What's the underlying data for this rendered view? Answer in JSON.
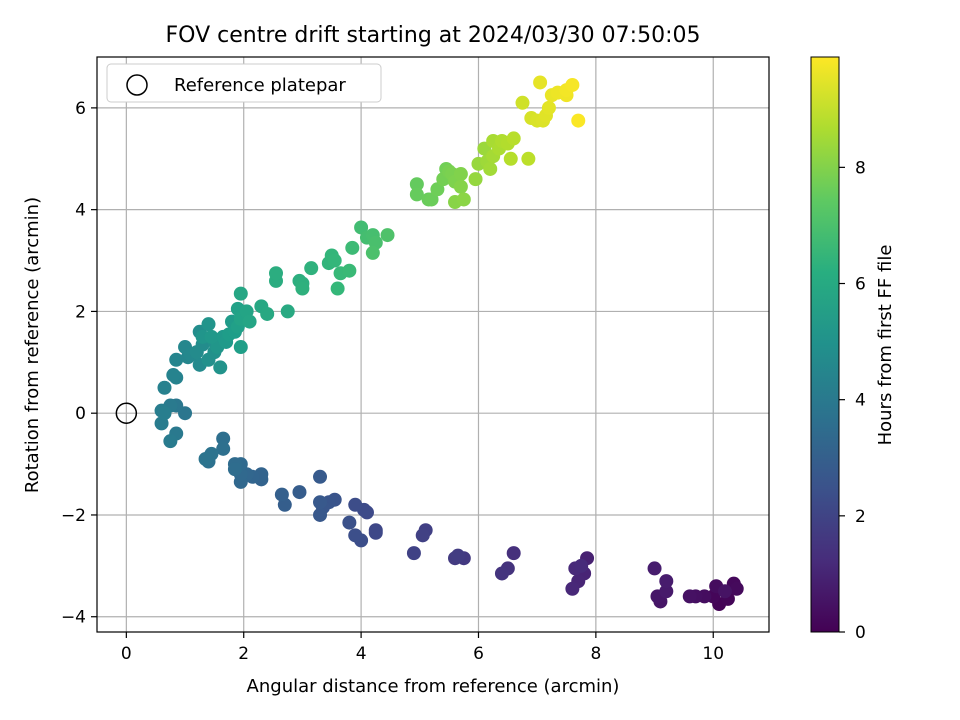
{
  "chart_data": {
    "type": "scatter",
    "title": "FOV centre drift starting at 2024/03/30 07:50:05",
    "xlabel": "Angular distance from reference (arcmin)",
    "ylabel": "Rotation from reference (arcmin)",
    "xlim": [
      -0.5,
      10.95
    ],
    "ylim": [
      -4.3,
      7.0
    ],
    "xticks": [
      "0",
      "2",
      "4",
      "6",
      "8",
      "10"
    ],
    "yticks": [
      "−4",
      "−2",
      "0",
      "2",
      "4",
      "6"
    ],
    "grid": true,
    "legend": {
      "placement": "top-left",
      "entries": [
        "Reference platepar"
      ]
    },
    "reference_point": {
      "x": 0,
      "y": 0
    },
    "colorbar": {
      "label": "Hours from first FF file",
      "range": [
        0,
        9.9
      ],
      "ticks": [
        "0",
        "2",
        "4",
        "6",
        "8"
      ],
      "colormap": "viridis"
    },
    "series": [
      {
        "color_by": "Hours from first FF file",
        "points": [
          [
            10.1,
            -3.75,
            0.05
          ],
          [
            10.25,
            -3.65,
            0.1
          ],
          [
            10.0,
            -3.6,
            0.15
          ],
          [
            10.35,
            -3.35,
            0.2
          ],
          [
            10.4,
            -3.45,
            0.25
          ],
          [
            10.05,
            -3.4,
            0.3
          ],
          [
            9.85,
            -3.6,
            0.35
          ],
          [
            9.7,
            -3.6,
            0.4
          ],
          [
            9.6,
            -3.6,
            0.45
          ],
          [
            10.2,
            -3.5,
            0.5
          ],
          [
            9.1,
            -3.7,
            0.55
          ],
          [
            9.05,
            -3.6,
            0.6
          ],
          [
            9.2,
            -3.5,
            0.7
          ],
          [
            9.2,
            -3.3,
            0.75
          ],
          [
            9.0,
            -3.05,
            0.8
          ],
          [
            7.85,
            -2.85,
            0.9
          ],
          [
            7.8,
            -3.15,
            1.0
          ],
          [
            7.7,
            -3.3,
            1.05
          ],
          [
            7.6,
            -3.45,
            1.1
          ],
          [
            7.65,
            -3.05,
            1.15
          ],
          [
            7.75,
            -3.0,
            1.2
          ],
          [
            6.6,
            -2.75,
            1.35
          ],
          [
            6.5,
            -3.05,
            1.45
          ],
          [
            6.4,
            -3.15,
            1.5
          ],
          [
            5.75,
            -2.85,
            1.65
          ],
          [
            5.6,
            -2.85,
            1.7
          ],
          [
            5.65,
            -2.8,
            1.75
          ],
          [
            5.1,
            -2.3,
            1.85
          ],
          [
            5.05,
            -2.4,
            1.9
          ],
          [
            4.9,
            -2.75,
            1.95
          ],
          [
            4.25,
            -2.3,
            2.1
          ],
          [
            4.25,
            -2.35,
            2.15
          ],
          [
            4.1,
            -1.95,
            2.2
          ],
          [
            4.05,
            -1.9,
            2.25
          ],
          [
            3.9,
            -1.8,
            2.3
          ],
          [
            4.0,
            -2.5,
            2.35
          ],
          [
            3.9,
            -2.4,
            2.4
          ],
          [
            3.8,
            -2.15,
            2.45
          ],
          [
            3.55,
            -1.7,
            2.55
          ],
          [
            3.45,
            -1.75,
            2.6
          ],
          [
            3.35,
            -1.85,
            2.65
          ],
          [
            3.3,
            -2.0,
            2.7
          ],
          [
            3.3,
            -1.75,
            2.75
          ],
          [
            3.3,
            -1.25,
            2.8
          ],
          [
            2.95,
            -1.55,
            2.9
          ],
          [
            2.7,
            -1.8,
            2.95
          ],
          [
            2.65,
            -1.6,
            3.0
          ],
          [
            2.3,
            -1.3,
            3.1
          ],
          [
            2.3,
            -1.2,
            3.15
          ],
          [
            2.15,
            -1.25,
            3.2
          ],
          [
            2.05,
            -1.2,
            3.25
          ],
          [
            1.95,
            -1.35,
            3.3
          ],
          [
            1.95,
            -1.2,
            3.35
          ],
          [
            1.95,
            -1.0,
            3.4
          ],
          [
            1.85,
            -1.0,
            3.45
          ],
          [
            1.85,
            -1.1,
            3.5
          ],
          [
            1.65,
            -0.5,
            3.6
          ],
          [
            1.65,
            -0.7,
            3.65
          ],
          [
            1.4,
            -0.95,
            3.7
          ],
          [
            1.45,
            -0.8,
            3.75
          ],
          [
            1.35,
            -0.9,
            3.8
          ],
          [
            1.0,
            0.0,
            3.9
          ],
          [
            0.85,
            0.15,
            3.95
          ],
          [
            0.85,
            -0.4,
            4.0
          ],
          [
            0.75,
            0.15,
            4.05
          ],
          [
            0.75,
            -0.55,
            4.1
          ],
          [
            0.6,
            -0.2,
            4.15
          ],
          [
            0.6,
            0.05,
            4.2
          ],
          [
            0.65,
            0.0,
            4.25
          ],
          [
            0.65,
            0.5,
            4.35
          ],
          [
            0.85,
            0.7,
            4.4
          ],
          [
            0.8,
            0.75,
            4.45
          ],
          [
            0.85,
            1.05,
            4.5
          ],
          [
            1.05,
            1.1,
            4.55
          ],
          [
            1.0,
            1.3,
            4.6
          ],
          [
            1.1,
            1.15,
            4.65
          ],
          [
            1.25,
            0.95,
            4.7
          ],
          [
            1.2,
            1.2,
            4.75
          ],
          [
            1.3,
            1.35,
            4.8
          ],
          [
            1.25,
            1.6,
            4.85
          ],
          [
            1.5,
            1.4,
            4.9
          ],
          [
            1.4,
            1.05,
            4.95
          ],
          [
            1.5,
            1.2,
            5.0
          ],
          [
            1.6,
            0.9,
            5.05
          ],
          [
            1.4,
            1.75,
            5.1
          ],
          [
            1.3,
            1.5,
            5.15
          ],
          [
            1.55,
            1.3,
            5.2
          ],
          [
            1.45,
            1.5,
            5.25
          ],
          [
            1.65,
            1.5,
            5.3
          ],
          [
            1.7,
            1.4,
            5.35
          ],
          [
            1.8,
            1.8,
            5.4
          ],
          [
            1.75,
            1.55,
            5.45
          ],
          [
            1.85,
            1.6,
            5.5
          ],
          [
            1.95,
            1.3,
            5.55
          ],
          [
            1.9,
            1.7,
            5.6
          ],
          [
            1.9,
            2.05,
            5.65
          ],
          [
            1.95,
            1.85,
            5.7
          ],
          [
            2.05,
            2.0,
            5.75
          ],
          [
            2.1,
            1.8,
            5.8
          ],
          [
            1.95,
            2.35,
            5.85
          ],
          [
            2.3,
            2.1,
            5.9
          ],
          [
            2.4,
            1.95,
            5.95
          ],
          [
            2.75,
            2.0,
            6.0
          ],
          [
            2.55,
            2.6,
            6.1
          ],
          [
            2.55,
            2.75,
            6.15
          ],
          [
            2.95,
            2.6,
            6.2
          ],
          [
            3.0,
            2.55,
            6.25
          ],
          [
            3.0,
            2.45,
            6.3
          ],
          [
            3.15,
            2.85,
            6.35
          ],
          [
            3.45,
            2.95,
            6.45
          ],
          [
            3.5,
            3.1,
            6.5
          ],
          [
            3.55,
            3.0,
            6.55
          ],
          [
            3.6,
            2.45,
            6.6
          ],
          [
            3.65,
            2.75,
            6.65
          ],
          [
            3.8,
            2.8,
            6.7
          ],
          [
            3.85,
            3.25,
            6.75
          ],
          [
            4.0,
            3.65,
            6.85
          ],
          [
            4.1,
            3.45,
            6.9
          ],
          [
            4.2,
            3.5,
            6.95
          ],
          [
            4.25,
            3.35,
            7.0
          ],
          [
            4.2,
            3.15,
            7.05
          ],
          [
            4.45,
            3.5,
            7.1
          ],
          [
            4.95,
            4.5,
            7.5
          ],
          [
            4.95,
            4.3,
            7.55
          ],
          [
            5.15,
            4.2,
            7.6
          ],
          [
            5.2,
            4.2,
            7.65
          ],
          [
            5.3,
            4.4,
            7.7
          ],
          [
            5.45,
            4.8,
            7.75
          ],
          [
            5.4,
            4.6,
            7.8
          ],
          [
            5.5,
            4.75,
            7.85
          ],
          [
            5.55,
            4.7,
            7.9
          ],
          [
            5.6,
            4.55,
            7.95
          ],
          [
            5.7,
            4.7,
            8.0
          ],
          [
            5.7,
            4.45,
            8.05
          ],
          [
            5.6,
            4.15,
            8.1
          ],
          [
            5.75,
            4.2,
            8.15
          ],
          [
            5.95,
            4.6,
            8.3
          ],
          [
            6.0,
            4.9,
            8.35
          ],
          [
            6.1,
            5.2,
            8.4
          ],
          [
            6.15,
            4.95,
            8.45
          ],
          [
            6.2,
            4.8,
            8.5
          ],
          [
            6.25,
            5.05,
            8.55
          ],
          [
            6.25,
            5.35,
            8.6
          ],
          [
            6.35,
            5.2,
            8.65
          ],
          [
            6.4,
            5.35,
            8.7
          ],
          [
            6.5,
            5.3,
            8.75
          ],
          [
            6.55,
            5.0,
            8.8
          ],
          [
            6.6,
            5.4,
            8.85
          ],
          [
            6.85,
            5.0,
            8.9
          ],
          [
            6.75,
            6.1,
            9.2
          ],
          [
            6.9,
            5.8,
            9.3
          ],
          [
            7.0,
            5.75,
            9.35
          ],
          [
            7.1,
            5.75,
            9.4
          ],
          [
            7.15,
            5.85,
            9.45
          ],
          [
            7.2,
            6.0,
            9.5
          ],
          [
            7.05,
            6.5,
            9.55
          ],
          [
            7.25,
            6.25,
            9.6
          ],
          [
            7.35,
            6.3,
            9.65
          ],
          [
            7.5,
            6.25,
            9.7
          ],
          [
            7.5,
            6.35,
            9.75
          ],
          [
            7.6,
            6.45,
            9.8
          ],
          [
            7.7,
            5.75,
            9.85
          ]
        ]
      }
    ]
  }
}
